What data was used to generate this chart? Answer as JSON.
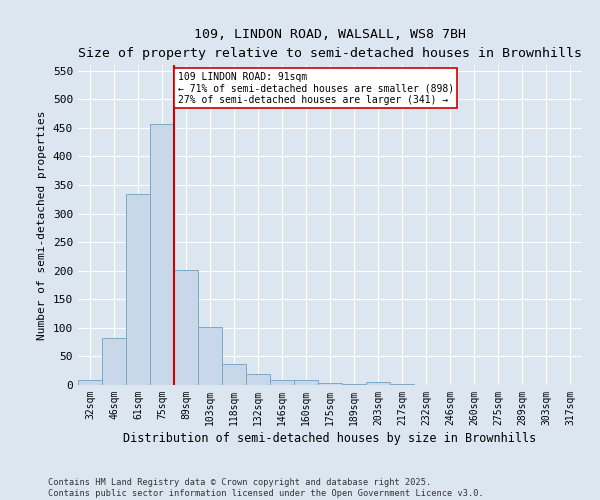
{
  "title_line1": "109, LINDON ROAD, WALSALL, WS8 7BH",
  "title_line2": "Size of property relative to semi-detached houses in Brownhills",
  "xlabel": "Distribution of semi-detached houses by size in Brownhills",
  "ylabel": "Number of semi-detached properties",
  "categories": [
    "32sqm",
    "46sqm",
    "61sqm",
    "75sqm",
    "89sqm",
    "103sqm",
    "118sqm",
    "132sqm",
    "146sqm",
    "160sqm",
    "175sqm",
    "189sqm",
    "203sqm",
    "217sqm",
    "232sqm",
    "246sqm",
    "260sqm",
    "275sqm",
    "289sqm",
    "303sqm",
    "317sqm"
  ],
  "values": [
    8,
    82,
    335,
    457,
    201,
    101,
    37,
    19,
    9,
    8,
    4,
    2,
    5,
    2,
    0,
    0,
    0,
    0,
    0,
    0,
    0
  ],
  "bar_color": "#c8d8ea",
  "bar_edge_color": "#7aaac8",
  "redline_x": 4,
  "redline_label": "109 LINDON ROAD: 91sqm",
  "annotation_smaller": "← 71% of semi-detached houses are smaller (898)",
  "annotation_larger": "27% of semi-detached houses are larger (341) →",
  "annotation_box_color": "#ffffff",
  "annotation_box_edge": "#cc0000",
  "redline_color": "#cc0000",
  "ylim": [
    0,
    560
  ],
  "yticks": [
    0,
    50,
    100,
    150,
    200,
    250,
    300,
    350,
    400,
    450,
    500,
    550
  ],
  "footer1": "Contains HM Land Registry data © Crown copyright and database right 2025.",
  "footer2": "Contains public sector information licensed under the Open Government Licence v3.0.",
  "bg_color": "#dce6f0",
  "plot_bg_color": "#dce6f0"
}
